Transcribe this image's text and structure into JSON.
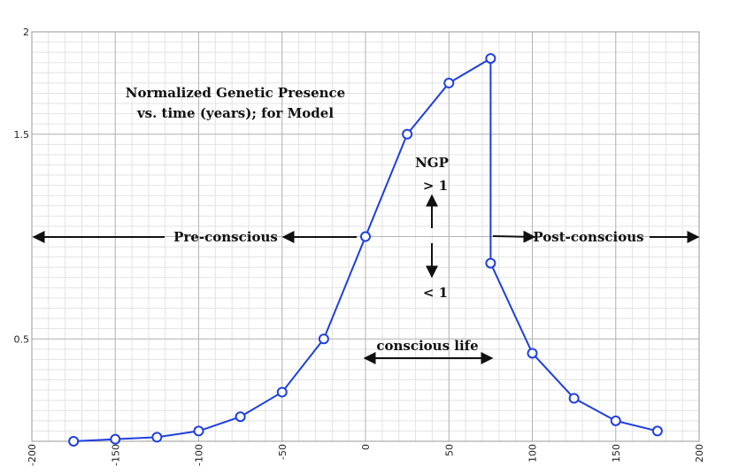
{
  "chart_data": {
    "type": "line",
    "title_line1": "Normalized Genetic Presence",
    "title_line2": "vs. time (years); for Model",
    "xlabel": "",
    "ylabel": "",
    "xlim": [
      -200,
      200
    ],
    "ylim": [
      0,
      2
    ],
    "grid": true,
    "x_ticks": [
      {
        "value": -200,
        "label": "-200"
      },
      {
        "value": -150,
        "label": "-150"
      },
      {
        "value": -100,
        "label": "-100"
      },
      {
        "value": -50,
        "label": "-50"
      },
      {
        "value": 0,
        "label": "0"
      },
      {
        "value": 50,
        "label": "50"
      },
      {
        "value": 100,
        "label": "100"
      },
      {
        "value": 150,
        "label": "150"
      },
      {
        "value": 200,
        "label": "200"
      }
    ],
    "y_ticks": [
      {
        "value": 0.5,
        "label": "0.5"
      },
      {
        "value": 1.5,
        "label": "1.5"
      },
      {
        "value": 2,
        "label": "2"
      }
    ],
    "series": [
      {
        "name": "NGP",
        "color": "#1f3fe0",
        "x": [
          -175,
          -150,
          -125,
          -100,
          -75,
          -50,
          -25,
          0,
          25,
          50,
          75,
          75,
          100,
          125,
          150,
          175
        ],
        "y": [
          0.0,
          0.01,
          0.02,
          0.05,
          0.12,
          0.24,
          0.5,
          1.0,
          1.5,
          1.75,
          1.87,
          0.87,
          0.43,
          0.21,
          0.1,
          0.05
        ]
      }
    ],
    "annotations": {
      "ngp_label": "NGP",
      "greater_label": "> 1",
      "less_label": "< 1",
      "pre_conscious": "Pre-conscious",
      "post_conscious": "Post-conscious",
      "conscious_life": "conscious life"
    },
    "colors": {
      "line": "#1f3fe0",
      "marker_fill": "#ffffff",
      "grid_major": "#b5b5b5",
      "grid_minor": "#e3e3e3",
      "text": "#111111"
    }
  }
}
